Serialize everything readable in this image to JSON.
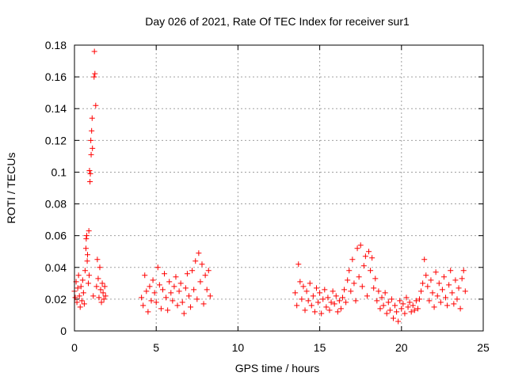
{
  "chart_data": {
    "type": "scatter",
    "title": "Day 026 of 2021, Rate Of TEC Index for receiver sur1",
    "xlabel": "GPS time / hours",
    "ylabel": "ROTI / TECUs",
    "xlim": [
      0,
      25
    ],
    "ylim": [
      0,
      0.18
    ],
    "x_ticks": [
      "0",
      "5",
      "10",
      "15",
      "20",
      "25"
    ],
    "y_ticks": [
      "0",
      "0.02",
      "0.04",
      "0.06",
      "0.08",
      "0.1",
      "0.12",
      "0.14",
      "0.16",
      "0.18"
    ],
    "grid": true,
    "marker": "+",
    "color": "#ff0000",
    "series": [
      {
        "values": [
          [
            0.0,
            0.025
          ],
          [
            0.05,
            0.021
          ],
          [
            0.1,
            0.031
          ],
          [
            0.15,
            0.018
          ],
          [
            0.2,
            0.027
          ],
          [
            0.25,
            0.035
          ],
          [
            0.3,
            0.022
          ],
          [
            0.35,
            0.015
          ],
          [
            0.4,
            0.028
          ],
          [
            0.45,
            0.019
          ],
          [
            0.5,
            0.032
          ],
          [
            0.55,
            0.024
          ],
          [
            0.6,
            0.017
          ],
          [
            0.65,
            0.038
          ],
          [
            0.7,
            0.052
          ],
          [
            0.72,
            0.058
          ],
          [
            0.75,
            0.06
          ],
          [
            0.78,
            0.044
          ],
          [
            0.8,
            0.048
          ],
          [
            0.85,
            0.03
          ],
          [
            0.88,
            0.063
          ],
          [
            0.9,
            0.035
          ],
          [
            0.92,
            0.101
          ],
          [
            0.95,
            0.094
          ],
          [
            0.97,
            0.099
          ],
          [
            1.0,
            0.12
          ],
          [
            1.02,
            0.111
          ],
          [
            1.05,
            0.126
          ],
          [
            1.08,
            0.134
          ],
          [
            1.1,
            0.115
          ],
          [
            1.15,
            0.022
          ],
          [
            1.2,
            0.16
          ],
          [
            1.22,
            0.176
          ],
          [
            1.25,
            0.162
          ],
          [
            1.3,
            0.142
          ],
          [
            1.35,
            0.028
          ],
          [
            1.4,
            0.045
          ],
          [
            1.45,
            0.033
          ],
          [
            1.5,
            0.021
          ],
          [
            1.55,
            0.04
          ],
          [
            1.6,
            0.026
          ],
          [
            1.65,
            0.018
          ],
          [
            1.7,
            0.03
          ],
          [
            1.75,
            0.024
          ],
          [
            1.8,
            0.02
          ],
          [
            1.85,
            0.028
          ],
          [
            1.9,
            0.022
          ],
          [
            4.1,
            0.021
          ],
          [
            4.2,
            0.016
          ],
          [
            4.3,
            0.035
          ],
          [
            4.4,
            0.025
          ],
          [
            4.5,
            0.012
          ],
          [
            4.6,
            0.028
          ],
          [
            4.7,
            0.019
          ],
          [
            4.8,
            0.032
          ],
          [
            4.9,
            0.024
          ],
          [
            5.0,
            0.018
          ],
          [
            5.1,
            0.04
          ],
          [
            5.2,
            0.029
          ],
          [
            5.3,
            0.014
          ],
          [
            5.4,
            0.026
          ],
          [
            5.5,
            0.036
          ],
          [
            5.6,
            0.021
          ],
          [
            5.7,
            0.013
          ],
          [
            5.8,
            0.031
          ],
          [
            5.9,
            0.024
          ],
          [
            6.0,
            0.019
          ],
          [
            6.1,
            0.028
          ],
          [
            6.2,
            0.034
          ],
          [
            6.3,
            0.016
          ],
          [
            6.4,
            0.025
          ],
          [
            6.5,
            0.03
          ],
          [
            6.6,
            0.018
          ],
          [
            6.7,
            0.011
          ],
          [
            6.8,
            0.027
          ],
          [
            6.9,
            0.036
          ],
          [
            7.0,
            0.022
          ],
          [
            7.1,
            0.015
          ],
          [
            7.2,
            0.038
          ],
          [
            7.3,
            0.026
          ],
          [
            7.4,
            0.044
          ],
          [
            7.5,
            0.02
          ],
          [
            7.6,
            0.049
          ],
          [
            7.7,
            0.031
          ],
          [
            7.8,
            0.042
          ],
          [
            7.9,
            0.017
          ],
          [
            8.0,
            0.035
          ],
          [
            8.1,
            0.026
          ],
          [
            8.2,
            0.038
          ],
          [
            8.3,
            0.022
          ],
          [
            13.5,
            0.024
          ],
          [
            13.6,
            0.016
          ],
          [
            13.7,
            0.042
          ],
          [
            13.8,
            0.031
          ],
          [
            13.9,
            0.02
          ],
          [
            14.0,
            0.028
          ],
          [
            14.1,
            0.013
          ],
          [
            14.2,
            0.025
          ],
          [
            14.3,
            0.019
          ],
          [
            14.4,
            0.03
          ],
          [
            14.5,
            0.016
          ],
          [
            14.6,
            0.022
          ],
          [
            14.7,
            0.012
          ],
          [
            14.8,
            0.027
          ],
          [
            14.9,
            0.018
          ],
          [
            15.0,
            0.024
          ],
          [
            15.1,
            0.011
          ],
          [
            15.2,
            0.02
          ],
          [
            15.3,
            0.026
          ],
          [
            15.4,
            0.015
          ],
          [
            15.5,
            0.021
          ],
          [
            15.6,
            0.013
          ],
          [
            15.7,
            0.018
          ],
          [
            15.8,
            0.025
          ],
          [
            15.9,
            0.017
          ],
          [
            16.0,
            0.022
          ],
          [
            16.1,
            0.012
          ],
          [
            16.2,
            0.019
          ],
          [
            16.3,
            0.014
          ],
          [
            16.4,
            0.021
          ],
          [
            16.5,
            0.026
          ],
          [
            16.6,
            0.018
          ],
          [
            16.7,
            0.032
          ],
          [
            16.8,
            0.038
          ],
          [
            16.9,
            0.025
          ],
          [
            17.0,
            0.045
          ],
          [
            17.1,
            0.03
          ],
          [
            17.2,
            0.019
          ],
          [
            17.3,
            0.052
          ],
          [
            17.4,
            0.034
          ],
          [
            17.5,
            0.054
          ],
          [
            17.6,
            0.028
          ],
          [
            17.7,
            0.041
          ],
          [
            17.8,
            0.047
          ],
          [
            17.9,
            0.022
          ],
          [
            18.0,
            0.05
          ],
          [
            18.1,
            0.038
          ],
          [
            18.2,
            0.046
          ],
          [
            18.3,
            0.027
          ],
          [
            18.4,
            0.033
          ],
          [
            18.5,
            0.019
          ],
          [
            18.6,
            0.025
          ],
          [
            18.7,
            0.014
          ],
          [
            18.8,
            0.021
          ],
          [
            18.9,
            0.016
          ],
          [
            19.0,
            0.024
          ],
          [
            19.1,
            0.011
          ],
          [
            19.2,
            0.018
          ],
          [
            19.3,
            0.013
          ],
          [
            19.4,
            0.02
          ],
          [
            19.5,
            0.008
          ],
          [
            19.6,
            0.016
          ],
          [
            19.7,
            0.012
          ],
          [
            19.8,
            0.006
          ],
          [
            19.9,
            0.019
          ],
          [
            20.0,
            0.014
          ],
          [
            20.1,
            0.017
          ],
          [
            20.2,
            0.011
          ],
          [
            20.3,
            0.021
          ],
          [
            20.4,
            0.015
          ],
          [
            20.5,
            0.018
          ],
          [
            20.6,
            0.012
          ],
          [
            20.7,
            0.016
          ],
          [
            20.8,
            0.013
          ],
          [
            20.9,
            0.019
          ],
          [
            21.0,
            0.014
          ],
          [
            21.1,
            0.02
          ],
          [
            21.2,
            0.025
          ],
          [
            21.3,
            0.03
          ],
          [
            21.4,
            0.045
          ],
          [
            21.5,
            0.035
          ],
          [
            21.6,
            0.028
          ],
          [
            21.7,
            0.019
          ],
          [
            21.8,
            0.032
          ],
          [
            21.9,
            0.024
          ],
          [
            22.0,
            0.015
          ],
          [
            22.1,
            0.037
          ],
          [
            22.2,
            0.022
          ],
          [
            22.3,
            0.03
          ],
          [
            22.4,
            0.018
          ],
          [
            22.5,
            0.026
          ],
          [
            22.6,
            0.034
          ],
          [
            22.7,
            0.021
          ],
          [
            22.8,
            0.016
          ],
          [
            22.9,
            0.029
          ],
          [
            23.0,
            0.038
          ],
          [
            23.1,
            0.024
          ],
          [
            23.2,
            0.017
          ],
          [
            23.3,
            0.032
          ],
          [
            23.4,
            0.02
          ],
          [
            23.5,
            0.027
          ],
          [
            23.6,
            0.014
          ],
          [
            23.7,
            0.033
          ],
          [
            23.8,
            0.038
          ],
          [
            23.9,
            0.025
          ]
        ]
      }
    ]
  }
}
